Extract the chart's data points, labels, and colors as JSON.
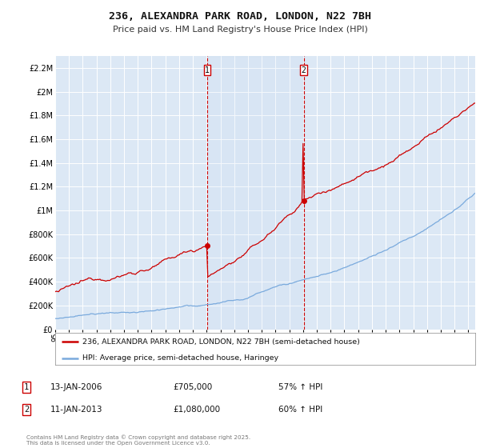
{
  "title_line1": "236, ALEXANDRA PARK ROAD, LONDON, N22 7BH",
  "title_line2": "Price paid vs. HM Land Registry's House Price Index (HPI)",
  "background_color": "#ffffff",
  "plot_bg_color": "#dce8f5",
  "grid_color": "#ffffff",
  "red_color": "#cc0000",
  "blue_color": "#7aaadd",
  "vline_color": "#cc0000",
  "marker1_year": 2006.04,
  "marker2_year": 2013.04,
  "legend_label_red": "236, ALEXANDRA PARK ROAD, LONDON, N22 7BH (semi-detached house)",
  "legend_label_blue": "HPI: Average price, semi-detached house, Haringey",
  "annotation1_date": "13-JAN-2006",
  "annotation1_price": "£705,000",
  "annotation1_hpi": "57% ↑ HPI",
  "annotation2_date": "11-JAN-2013",
  "annotation2_price": "£1,080,000",
  "annotation2_hpi": "60% ↑ HPI",
  "footer": "Contains HM Land Registry data © Crown copyright and database right 2025.\nThis data is licensed under the Open Government Licence v3.0.",
  "ylim_top": 2300000,
  "ylim_bottom": 0,
  "xlim_left": 1995.0,
  "xlim_right": 2025.5
}
